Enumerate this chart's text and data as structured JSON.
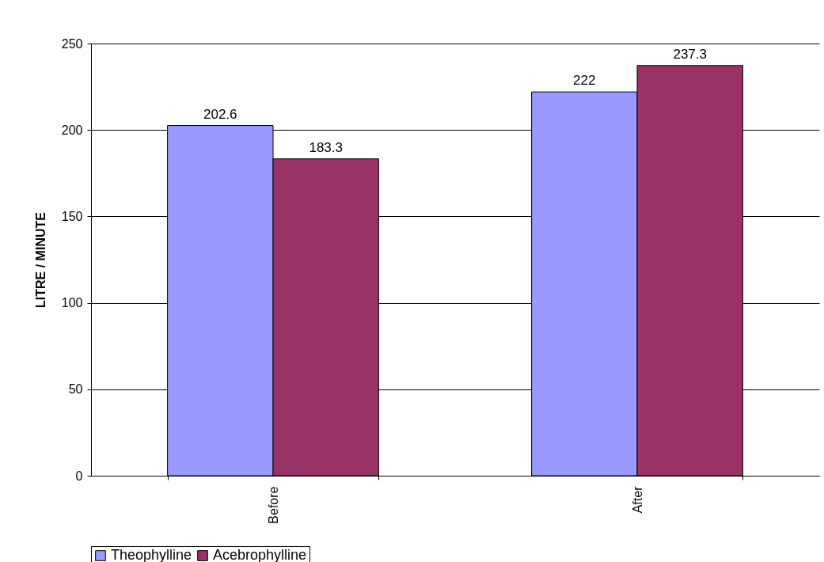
{
  "chart_data": {
    "type": "bar",
    "ylabel": "LITRE / MINUTE",
    "categories": [
      "Before",
      "After"
    ],
    "series": [
      {
        "name": "Theophylline",
        "color": "#9999ff",
        "values": [
          202.6,
          222
        ]
      },
      {
        "name": "Acebrophylline",
        "color": "#993366",
        "values": [
          183.3,
          237.3
        ]
      }
    ],
    "ylim": [
      0,
      250
    ],
    "yticks": [
      0,
      50,
      100,
      150,
      200,
      250
    ],
    "grid": "y",
    "legend": "bottom",
    "data_labels": true
  }
}
